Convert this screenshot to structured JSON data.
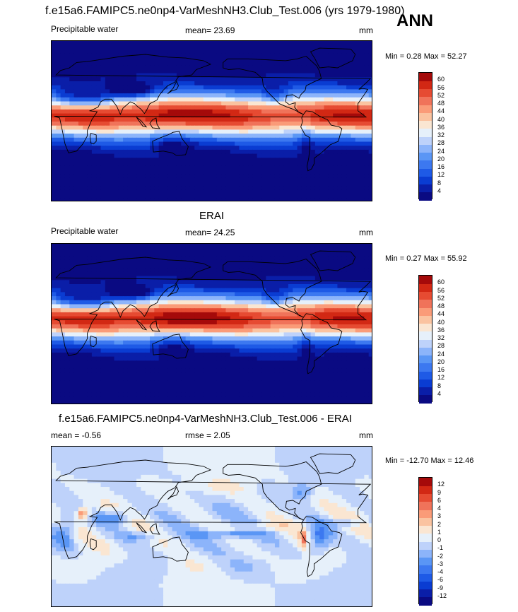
{
  "season": "ANN",
  "panels": [
    {
      "title": "f.e15a6.FAMIPC5.ne0np4-VarMeshNH3.Club_Test.006 (yrs 1979-1980)",
      "left_label": "Precipitable water",
      "center_label": "mean=  23.69",
      "right_label": "mm",
      "minmax": "Min =   0.28 Max =  52.27",
      "kind": "abs"
    },
    {
      "title": "ERAI",
      "left_label": "Precipitable water",
      "center_label": "mean=  24.25",
      "right_label": "mm",
      "minmax": "Min =   0.27 Max =  55.92",
      "kind": "abs"
    },
    {
      "title": "f.e15a6.FAMIPC5.ne0np4-VarMeshNH3.Club_Test.006 - ERAI",
      "left_label": "mean =  -0.56",
      "center_label": "rmse =   2.05",
      "right_label": "mm",
      "minmax": "Min = -12.70 Max =  12.46",
      "kind": "diff"
    }
  ],
  "chart_data": [
    {
      "type": "heatmap",
      "title": "f.e15a6.FAMIPC5.ne0np4-VarMeshNH3.Club_Test.006 (yrs 1979-1980)",
      "variable": "Precipitable water",
      "units": "mm",
      "mean": 23.69,
      "min": 0.28,
      "max": 52.27,
      "colorbar_levels": [
        4,
        8,
        12,
        16,
        20,
        24,
        28,
        32,
        36,
        40,
        44,
        48,
        52,
        56,
        60
      ],
      "colorbar_colors": [
        "#0a0a82",
        "#0a1ea8",
        "#0a3cd2",
        "#1e5ae6",
        "#3c78f0",
        "#5a96f5",
        "#8cb4fa",
        "#bed2fa",
        "#e6f0fa",
        "#fae6d2",
        "#fac3a0",
        "#fa9b78",
        "#f0735a",
        "#e64b32",
        "#d22814",
        "#a50a0a"
      ]
    },
    {
      "type": "heatmap",
      "title": "ERAI",
      "variable": "Precipitable water",
      "units": "mm",
      "mean": 24.25,
      "min": 0.27,
      "max": 55.92,
      "colorbar_levels": [
        4,
        8,
        12,
        16,
        20,
        24,
        28,
        32,
        36,
        40,
        44,
        48,
        52,
        56,
        60
      ],
      "colorbar_colors": [
        "#0a0a82",
        "#0a1ea8",
        "#0a3cd2",
        "#1e5ae6",
        "#3c78f0",
        "#5a96f5",
        "#8cb4fa",
        "#bed2fa",
        "#e6f0fa",
        "#fae6d2",
        "#fac3a0",
        "#fa9b78",
        "#f0735a",
        "#e64b32",
        "#d22814",
        "#a50a0a"
      ]
    },
    {
      "type": "heatmap",
      "title": "f.e15a6.FAMIPC5.ne0np4-VarMeshNH3.Club_Test.006 - ERAI",
      "units": "mm",
      "mean": -0.56,
      "rmse": 2.05,
      "min": -12.7,
      "max": 12.46,
      "colorbar_levels": [
        -12,
        -9,
        -6,
        -4,
        -3,
        -2,
        -1,
        0,
        1,
        2,
        3,
        4,
        6,
        9,
        12
      ],
      "colorbar_colors": [
        "#0a0a82",
        "#0a1ea8",
        "#0a3cd2",
        "#1e5ae6",
        "#3c78f0",
        "#5a96f5",
        "#8cb4fa",
        "#bed2fa",
        "#e6f0fa",
        "#fae6d2",
        "#fac3a0",
        "#fa9b78",
        "#f0735a",
        "#e64b32",
        "#d22814",
        "#a50a0a"
      ]
    }
  ]
}
